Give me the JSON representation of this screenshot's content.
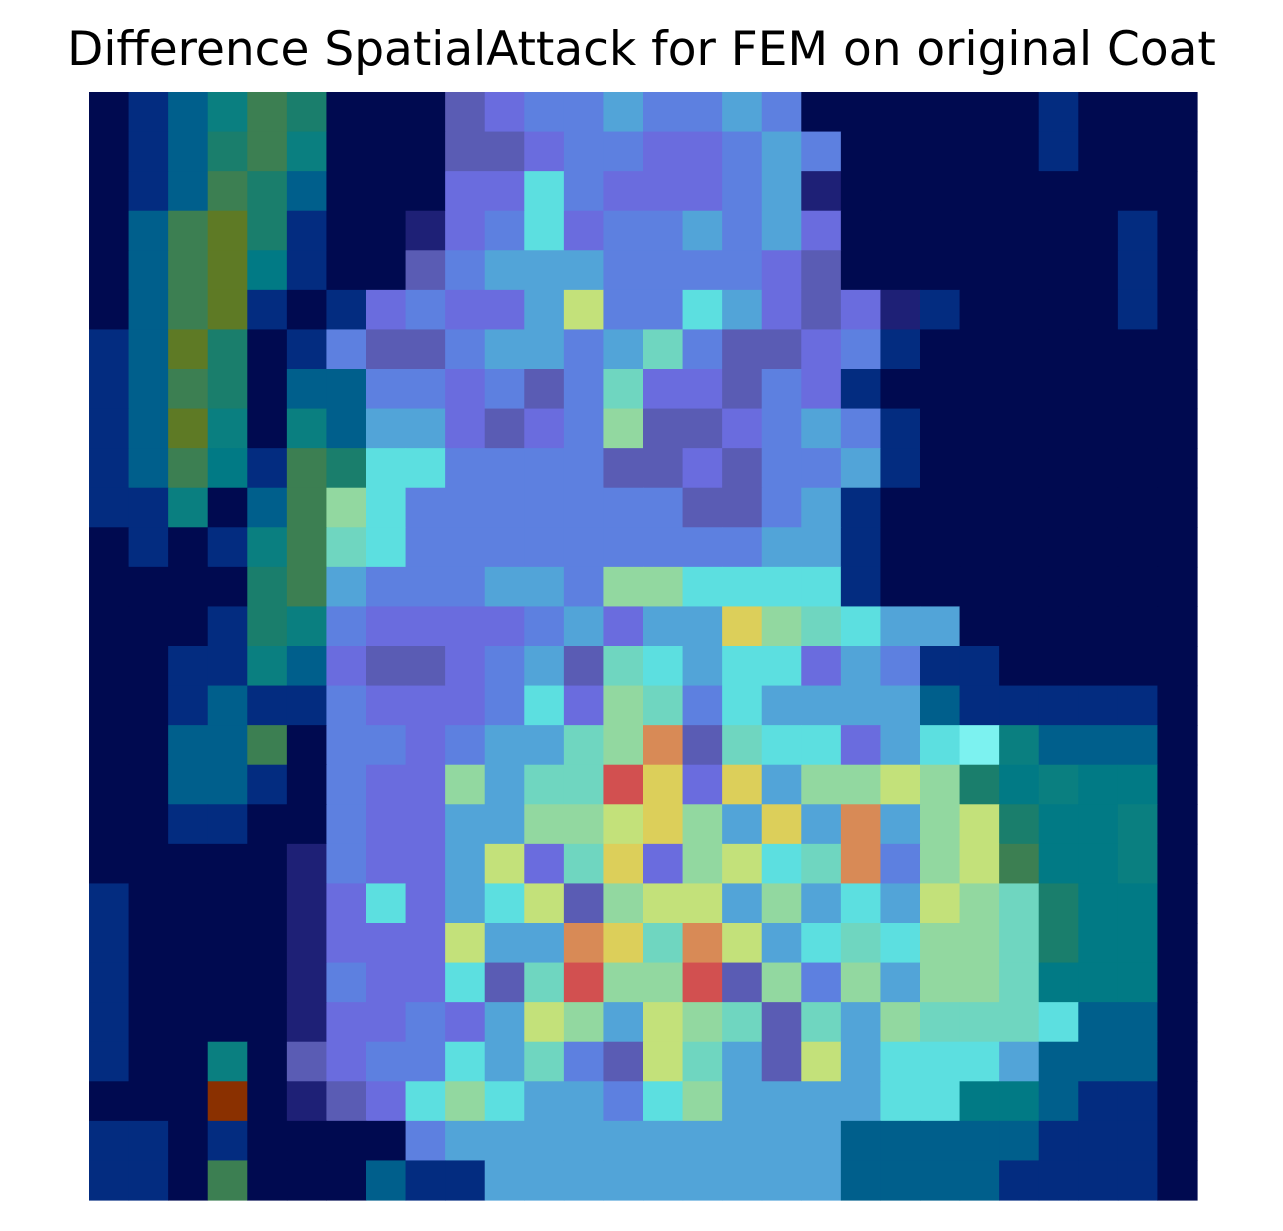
{
  "chart_data": {
    "type": "heatmap",
    "title": "Difference SpatialAttack for FEM on original Coat",
    "xlabel": "",
    "ylabel": "",
    "axes_visible": false,
    "grid": false,
    "colorbar": false,
    "rows": 28,
    "cols": 28,
    "palette": {
      "a": "#000a50",
      "b": "#032c80",
      "c": "#005f8c",
      "d": "#017a85",
      "e": "#3c7f52",
      "f": "#5e7a25",
      "g": "#1e2076",
      "h": "#5a5cb4",
      "i": "#6a6cde",
      "j": "#5d80e0",
      "k": "#52a4d8",
      "l": "#5cdfe0",
      "m": "#6fd6c0",
      "n": "#92d8a0",
      "o": "#c3e17a",
      "p": "#dccf5a",
      "q": "#d88a56",
      "r": "#d25050",
      "s": "#1a7e6c",
      "t": "#0a7f80",
      "u": "#8a3000",
      "v": "#7cf2f0"
    },
    "matrix": [
      "abcte saaahijjkjjkjaaaaaabaa",
      "abcse taaahhijjiijkjaaaaabaa",
      "abces caaaiiljiiijkgaaaaaaaa",
      "acefs baagijlijjkjkiaaaaaaab",
      "acefd baahjkkkjjjjihaaaaaaab",
      "acefb abijiikojjlkihigbaaaab",
      "bcfsa bjhhjkkjkmjhhijbaaaaaa",
      "bcesa ccjjijhjmiihjibaaaaaaa",
      "bcfta tckkihijnhhijkjbaaaaaa",
      "bcedb eslljjjjhhihjjkbaaaaaa",
      "bbtac enljjjjjjjhhjkbaaaaaaa",
      "ababt emljjjjjjjjjkkbaaaaaaa",
      "aaaas ekjjjkkjnnllllbaaaaaaa",
      "aaabs tjiiiijkikkpnmlkkaaaaa",
      "aabbt cihhijkhmlkllikjbbaaaa",
      "aabcb bjiiijlinmjlkkkkcbbbbb",
      "aacce ajjijkkmnqhmlliklvtccc",
      "aaccb ajiinkmmrpipknnonsdtdd",
      "aabba ajiikknnopnkpkqknosddt",
      "aaaaa gjiikoimpinolmqjnoeddt",
      "baaaa giliklohnooknklkonmsdd",
      "baaaa giiiokkqpmqoklmlnnmsdd",
      "baaaa gjiilhmrnnrhnjnknnmddd",
      "baaaa giijikonkonmhmknmmmlcc",
      "baata hijjlkmjhomkhoklllkccc",
      "aaaua ghilnlkkjlnkkkkllddcbb",
      "bbaba aaajkkkkkkkkkkcccccbbb",
      "bbaea aacbbkkkkkkkkkccccbbbb"
    ]
  }
}
